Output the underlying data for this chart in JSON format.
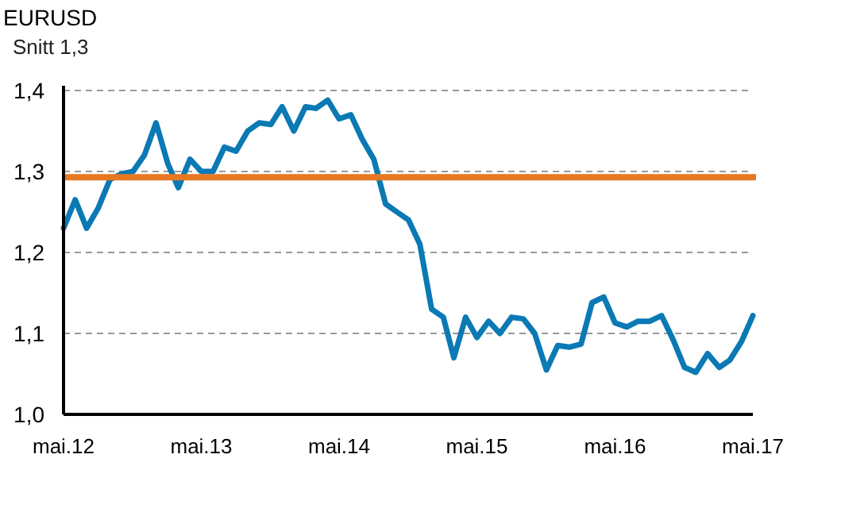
{
  "chart_data": {
    "type": "line",
    "title": "EURUSD",
    "subtitle": "Snitt 1,3",
    "x": [
      "2012-05",
      "2012-06",
      "2012-07",
      "2012-08",
      "2012-09",
      "2012-10",
      "2012-11",
      "2012-12",
      "2013-01",
      "2013-02",
      "2013-03",
      "2013-04",
      "2013-05",
      "2013-06",
      "2013-07",
      "2013-08",
      "2013-09",
      "2013-10",
      "2013-11",
      "2013-12",
      "2014-01",
      "2014-02",
      "2014-03",
      "2014-04",
      "2014-05",
      "2014-06",
      "2014-07",
      "2014-08",
      "2014-09",
      "2014-10",
      "2014-11",
      "2014-12",
      "2015-01",
      "2015-02",
      "2015-03",
      "2015-04",
      "2015-05",
      "2015-06",
      "2015-07",
      "2015-08",
      "2015-09",
      "2015-10",
      "2015-11",
      "2015-12",
      "2016-01",
      "2016-02",
      "2016-03",
      "2016-04",
      "2016-05",
      "2016-06",
      "2016-07",
      "2016-08",
      "2016-09",
      "2016-10",
      "2016-11",
      "2016-12",
      "2017-01",
      "2017-02",
      "2017-03",
      "2017-04",
      "2017-05"
    ],
    "series": [
      {
        "color": "#0a79b4",
        "values": [
          1.23,
          1.265,
          1.23,
          1.255,
          1.29,
          1.297,
          1.3,
          1.32,
          1.36,
          1.31,
          1.28,
          1.315,
          1.3,
          1.3,
          1.33,
          1.325,
          1.35,
          1.36,
          1.358,
          1.38,
          1.35,
          1.38,
          1.378,
          1.388,
          1.365,
          1.37,
          1.34,
          1.315,
          1.26,
          1.25,
          1.24,
          1.21,
          1.13,
          1.12,
          1.07,
          1.12,
          1.095,
          1.115,
          1.1,
          1.12,
          1.118,
          1.1,
          1.055,
          1.085,
          1.083,
          1.087,
          1.138,
          1.145,
          1.113,
          1.108,
          1.115,
          1.115,
          1.122,
          1.093,
          1.058,
          1.052,
          1.075,
          1.058,
          1.067,
          1.09,
          1.122
        ]
      }
    ],
    "xlim": [
      "2012-05",
      "2017-05"
    ],
    "xticks": [
      {
        "value": "2012-05",
        "label": "mai.12"
      },
      {
        "value": "2013-05",
        "label": "mai.13"
      },
      {
        "value": "2014-05",
        "label": "mai.14"
      },
      {
        "value": "2015-05",
        "label": "mai.15"
      },
      {
        "value": "2016-05",
        "label": "mai.16"
      },
      {
        "value": "2017-05",
        "label": "mai.17"
      }
    ],
    "ylim": [
      1.0,
      1.4
    ],
    "yticks": [
      {
        "value": 1.0,
        "label": "1,0"
      },
      {
        "value": 1.1,
        "label": "1,1"
      },
      {
        "value": 1.2,
        "label": "1,2"
      },
      {
        "value": 1.3,
        "label": "1,3"
      },
      {
        "value": 1.4,
        "label": "1,4"
      }
    ],
    "grid": "y",
    "marker": "none",
    "line_style": "solid",
    "ref_lines": [
      {
        "axis": "y",
        "value": 1.293,
        "color": "#e87722",
        "line_style": "solid"
      }
    ]
  }
}
